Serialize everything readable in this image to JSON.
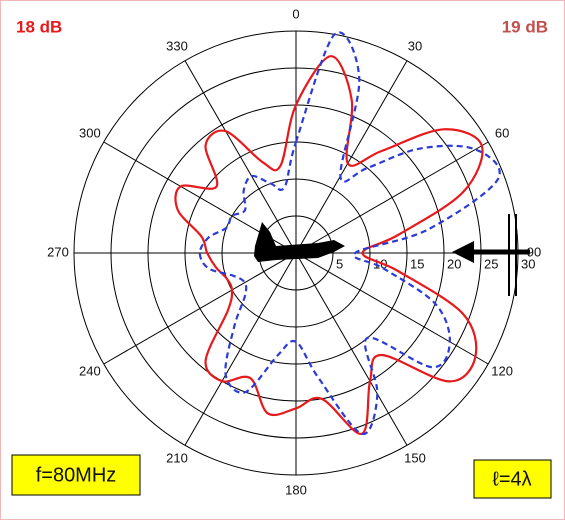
{
  "chart_data": {
    "type": "polar",
    "annotations": [
      {
        "text": "18 dB",
        "color": "#e8191c"
      },
      {
        "text": "19 dB",
        "color": "#c0504d"
      },
      {
        "text": "f=80MHz"
      },
      {
        "text": "ℓ=4λ"
      }
    ],
    "theta": [
      0,
      10,
      20,
      30,
      40,
      50,
      60,
      70,
      80,
      90,
      100,
      110,
      120,
      130,
      140,
      150,
      160,
      170,
      180,
      190,
      200,
      210,
      220,
      230,
      240,
      250,
      260,
      270,
      280,
      290,
      300,
      310,
      320,
      330,
      340,
      350
    ],
    "series": [
      {
        "color": "#e8191c",
        "dash": "solid",
        "values": [
          20,
          27,
          22,
          14,
          18,
          26,
          29,
          24,
          14,
          9,
          14,
          24,
          28,
          27,
          18,
          20,
          26,
          20,
          21,
          22,
          18,
          20,
          19,
          12,
          10,
          10,
          11,
          12,
          13,
          17,
          18,
          14,
          19,
          19,
          13,
          12
        ]
      },
      {
        "color": "#2b3bd6",
        "dash": "dashed",
        "values": [
          15,
          30,
          25,
          12,
          15,
          22,
          28,
          29,
          18,
          8,
          12,
          20,
          24,
          24,
          15,
          22,
          26,
          17,
          12,
          14,
          20,
          19,
          13,
          9,
          8,
          9,
          12,
          13,
          12,
          10,
          10,
          9,
          11,
          12,
          10,
          9
        ]
      }
    ],
    "rlim": [
      0,
      30
    ],
    "rticks": [
      5,
      10,
      15,
      20,
      25,
      30
    ],
    "thetaticks": [
      0,
      30,
      60,
      90,
      120,
      150,
      180,
      210,
      240,
      270,
      300,
      330
    ],
    "grid": true
  }
}
